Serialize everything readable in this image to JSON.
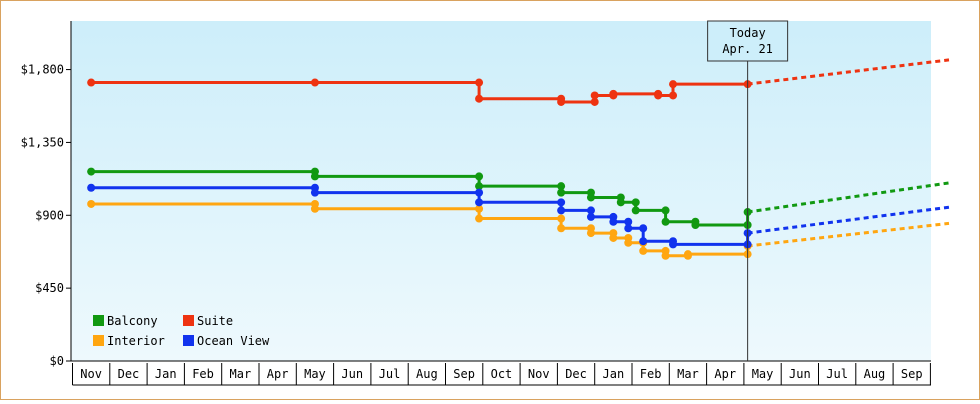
{
  "chart_data": {
    "type": "line",
    "y_ticks": [
      "$0",
      "$450",
      "$900",
      "$1,350",
      "$1,800"
    ],
    "ylim": [
      0,
      2100
    ],
    "months": [
      "Nov",
      "Dec",
      "Jan",
      "Feb",
      "Mar",
      "Apr",
      "May",
      "Jun",
      "Jul",
      "Aug",
      "Sep",
      "Oct",
      "Nov",
      "Dec",
      "Jan",
      "Feb",
      "Mar",
      "Apr",
      "May",
      "Jun",
      "Jul",
      "Aug",
      "Sep"
    ],
    "today": {
      "line1": "Today",
      "line2": "Apr. 21",
      "index": 17.6
    },
    "grid": false,
    "legend": "bottom-left",
    "series": [
      {
        "name": "Balcony",
        "color": "#119911",
        "points": [
          [
            0,
            1170
          ],
          [
            6,
            1170
          ],
          [
            6,
            1140
          ],
          [
            10.4,
            1140
          ],
          [
            10.4,
            1080
          ],
          [
            12.6,
            1080
          ],
          [
            12.6,
            1040
          ],
          [
            13.4,
            1040
          ],
          [
            13.4,
            1010
          ],
          [
            14.2,
            1010
          ],
          [
            14.2,
            980
          ],
          [
            14.6,
            980
          ],
          [
            14.6,
            930
          ],
          [
            15.4,
            930
          ],
          [
            15.4,
            860
          ],
          [
            16.2,
            860
          ],
          [
            16.2,
            840
          ],
          [
            17.6,
            840
          ],
          [
            17.6,
            920
          ]
        ],
        "forecast": [
          [
            17.6,
            920
          ],
          [
            23,
            1100
          ]
        ]
      },
      {
        "name": "Suite",
        "color": "#ee3311",
        "points": [
          [
            0,
            1720
          ],
          [
            6,
            1720
          ],
          [
            10.4,
            1720
          ],
          [
            10.4,
            1620
          ],
          [
            12.6,
            1620
          ],
          [
            12.6,
            1600
          ],
          [
            13.5,
            1600
          ],
          [
            13.5,
            1640
          ],
          [
            14,
            1640
          ],
          [
            14,
            1650
          ],
          [
            15.2,
            1650
          ],
          [
            15.2,
            1640
          ],
          [
            15.6,
            1640
          ],
          [
            15.6,
            1710
          ],
          [
            17.6,
            1710
          ]
        ],
        "forecast": [
          [
            17.6,
            1710
          ],
          [
            23,
            1860
          ]
        ]
      },
      {
        "name": "Interior",
        "color": "#ffa611",
        "points": [
          [
            0,
            970
          ],
          [
            6,
            970
          ],
          [
            6,
            940
          ],
          [
            10.4,
            940
          ],
          [
            10.4,
            880
          ],
          [
            12.6,
            880
          ],
          [
            12.6,
            820
          ],
          [
            13.4,
            820
          ],
          [
            13.4,
            790
          ],
          [
            14,
            790
          ],
          [
            14,
            760
          ],
          [
            14.4,
            760
          ],
          [
            14.4,
            730
          ],
          [
            14.8,
            730
          ],
          [
            14.8,
            680
          ],
          [
            15.4,
            680
          ],
          [
            15.4,
            650
          ],
          [
            16,
            650
          ],
          [
            16,
            660
          ],
          [
            17.6,
            660
          ],
          [
            17.6,
            710
          ]
        ],
        "forecast": [
          [
            17.6,
            710
          ],
          [
            23,
            850
          ]
        ]
      },
      {
        "name": "Ocean View",
        "color": "#1133ee",
        "points": [
          [
            0,
            1070
          ],
          [
            6,
            1070
          ],
          [
            6,
            1040
          ],
          [
            10.4,
            1040
          ],
          [
            10.4,
            980
          ],
          [
            12.6,
            980
          ],
          [
            12.6,
            930
          ],
          [
            13.4,
            930
          ],
          [
            13.4,
            890
          ],
          [
            14,
            890
          ],
          [
            14,
            860
          ],
          [
            14.4,
            860
          ],
          [
            14.4,
            820
          ],
          [
            14.8,
            820
          ],
          [
            14.8,
            740
          ],
          [
            15.6,
            740
          ],
          [
            15.6,
            720
          ],
          [
            17.6,
            720
          ],
          [
            17.6,
            790
          ]
        ],
        "forecast": [
          [
            17.6,
            790
          ],
          [
            23,
            950
          ]
        ]
      }
    ]
  }
}
